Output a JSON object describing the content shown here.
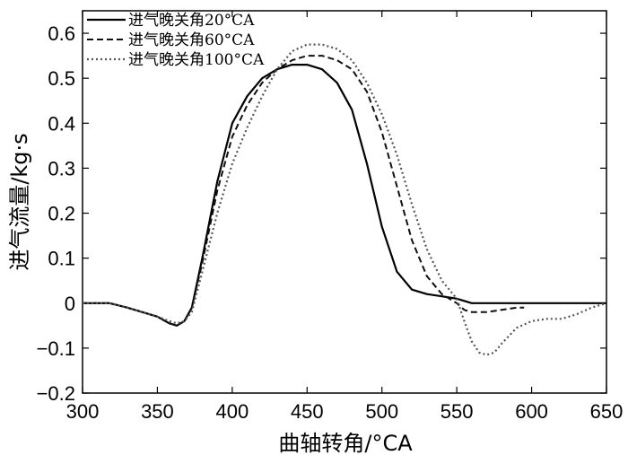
{
  "chart_data": {
    "type": "line",
    "title": "",
    "xlabel": "曲轴转角/°CA",
    "ylabel": "进气流量/kg·s",
    "xlim": [
      300,
      650
    ],
    "ylim": [
      -0.2,
      0.65
    ],
    "xticks": [
      300,
      350,
      400,
      450,
      500,
      550,
      600,
      650
    ],
    "yticks": [
      -0.2,
      -0.1,
      0,
      0.1,
      0.2,
      0.3,
      0.4,
      0.5,
      0.6
    ],
    "xtick_labels": [
      "300",
      "350",
      "400",
      "450",
      "500",
      "550",
      "600",
      "650"
    ],
    "ytick_labels": [
      "−0.2",
      "−0.1",
      "0",
      "0.1",
      "0.2",
      "0.3",
      "0.4",
      "0.5",
      "0.6"
    ],
    "grid": false,
    "legend_position": "top-left",
    "series": [
      {
        "name": "进气晚关角20°CA",
        "style": "solid",
        "x": [
          300,
          318,
          330,
          340,
          350,
          358,
          363,
          368,
          373,
          380,
          390,
          400,
          410,
          420,
          430,
          440,
          450,
          460,
          470,
          480,
          490,
          500,
          510,
          520,
          530,
          540,
          550,
          555,
          560,
          600,
          650
        ],
        "y": [
          0,
          0,
          -0.01,
          -0.02,
          -0.03,
          -0.045,
          -0.05,
          -0.04,
          -0.01,
          0.1,
          0.27,
          0.4,
          0.46,
          0.5,
          0.52,
          0.53,
          0.53,
          0.52,
          0.49,
          0.43,
          0.31,
          0.17,
          0.07,
          0.03,
          0.02,
          0.015,
          0.01,
          0.005,
          0,
          0,
          0
        ]
      },
      {
        "name": "进气晚关角60°CA",
        "style": "dashed",
        "x": [
          300,
          318,
          330,
          340,
          350,
          358,
          363,
          368,
          373,
          380,
          390,
          400,
          410,
          420,
          430,
          440,
          450,
          460,
          470,
          480,
          490,
          500,
          510,
          520,
          530,
          540,
          545,
          550,
          555,
          560,
          570,
          580,
          590,
          595
        ],
        "y": [
          0,
          0,
          -0.01,
          -0.02,
          -0.03,
          -0.045,
          -0.05,
          -0.04,
          -0.01,
          0.09,
          0.25,
          0.37,
          0.44,
          0.49,
          0.52,
          0.54,
          0.55,
          0.55,
          0.54,
          0.52,
          0.47,
          0.38,
          0.26,
          0.14,
          0.06,
          0.02,
          0.01,
          0,
          -0.015,
          -0.02,
          -0.02,
          -0.015,
          -0.01,
          -0.01
        ]
      },
      {
        "name": "进气晚关角100°CA",
        "style": "dotted",
        "x": [
          300,
          318,
          330,
          340,
          350,
          358,
          363,
          368,
          373,
          380,
          390,
          400,
          410,
          420,
          430,
          440,
          450,
          460,
          470,
          480,
          490,
          500,
          510,
          520,
          530,
          540,
          550,
          555,
          560,
          565,
          570,
          575,
          580,
          590,
          600,
          610,
          620,
          630,
          640,
          650
        ],
        "y": [
          0,
          0,
          -0.01,
          -0.02,
          -0.03,
          -0.04,
          -0.045,
          -0.04,
          -0.02,
          0.07,
          0.2,
          0.31,
          0.39,
          0.46,
          0.52,
          0.56,
          0.575,
          0.575,
          0.565,
          0.54,
          0.49,
          0.42,
          0.33,
          0.22,
          0.12,
          0.05,
          0.01,
          -0.04,
          -0.085,
          -0.11,
          -0.115,
          -0.11,
          -0.09,
          -0.055,
          -0.04,
          -0.035,
          -0.035,
          -0.025,
          -0.01,
          0
        ]
      }
    ]
  }
}
